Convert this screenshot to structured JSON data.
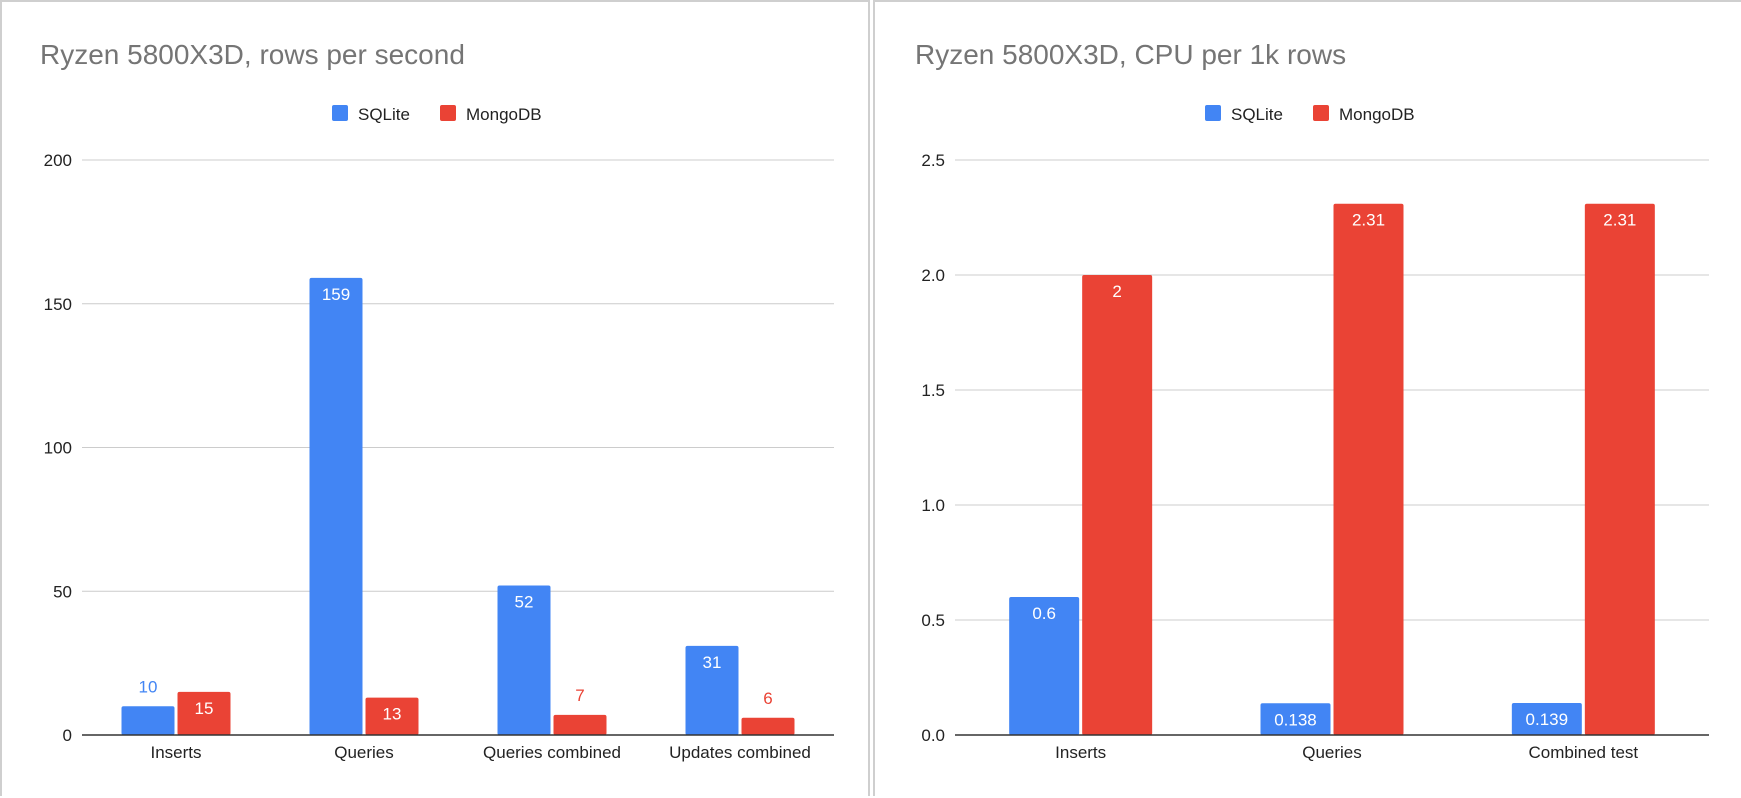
{
  "chart_data": [
    {
      "type": "bar",
      "title": "Ryzen 5800X3D, rows per second",
      "categories": [
        "Inserts",
        "Queries",
        "Queries combined",
        "Updates combined"
      ],
      "series": [
        {
          "name": "SQLite",
          "values": [
            10,
            159,
            52,
            31
          ],
          "labels": [
            "10",
            "159",
            "52",
            "31"
          ],
          "color": "#4285f4"
        },
        {
          "name": "MongoDB",
          "values": [
            15,
            13,
            7,
            6
          ],
          "labels": [
            "15",
            "13",
            "7",
            "6"
          ],
          "color": "#ea4335"
        }
      ],
      "ylim": [
        0,
        200
      ],
      "yticks": [
        "0",
        "50",
        "100",
        "150",
        "200"
      ],
      "legend_position": "top",
      "grid": true
    },
    {
      "type": "bar",
      "title": "Ryzen 5800X3D, CPU per 1k rows",
      "categories": [
        "Inserts",
        "Queries",
        "Combined test"
      ],
      "series": [
        {
          "name": "SQLite",
          "values": [
            0.6,
            0.138,
            0.139
          ],
          "labels": [
            "0.6",
            "0.138",
            "0.139"
          ],
          "color": "#4285f4"
        },
        {
          "name": "MongoDB",
          "values": [
            2,
            2.31,
            2.31
          ],
          "labels": [
            "2",
            "2.31",
            "2.31"
          ],
          "color": "#ea4335"
        }
      ],
      "ylim": [
        0,
        2.5
      ],
      "yticks": [
        "0.0",
        "0.5",
        "1.0",
        "1.5",
        "2.0",
        "2.5"
      ],
      "legend_position": "top",
      "grid": true
    }
  ]
}
